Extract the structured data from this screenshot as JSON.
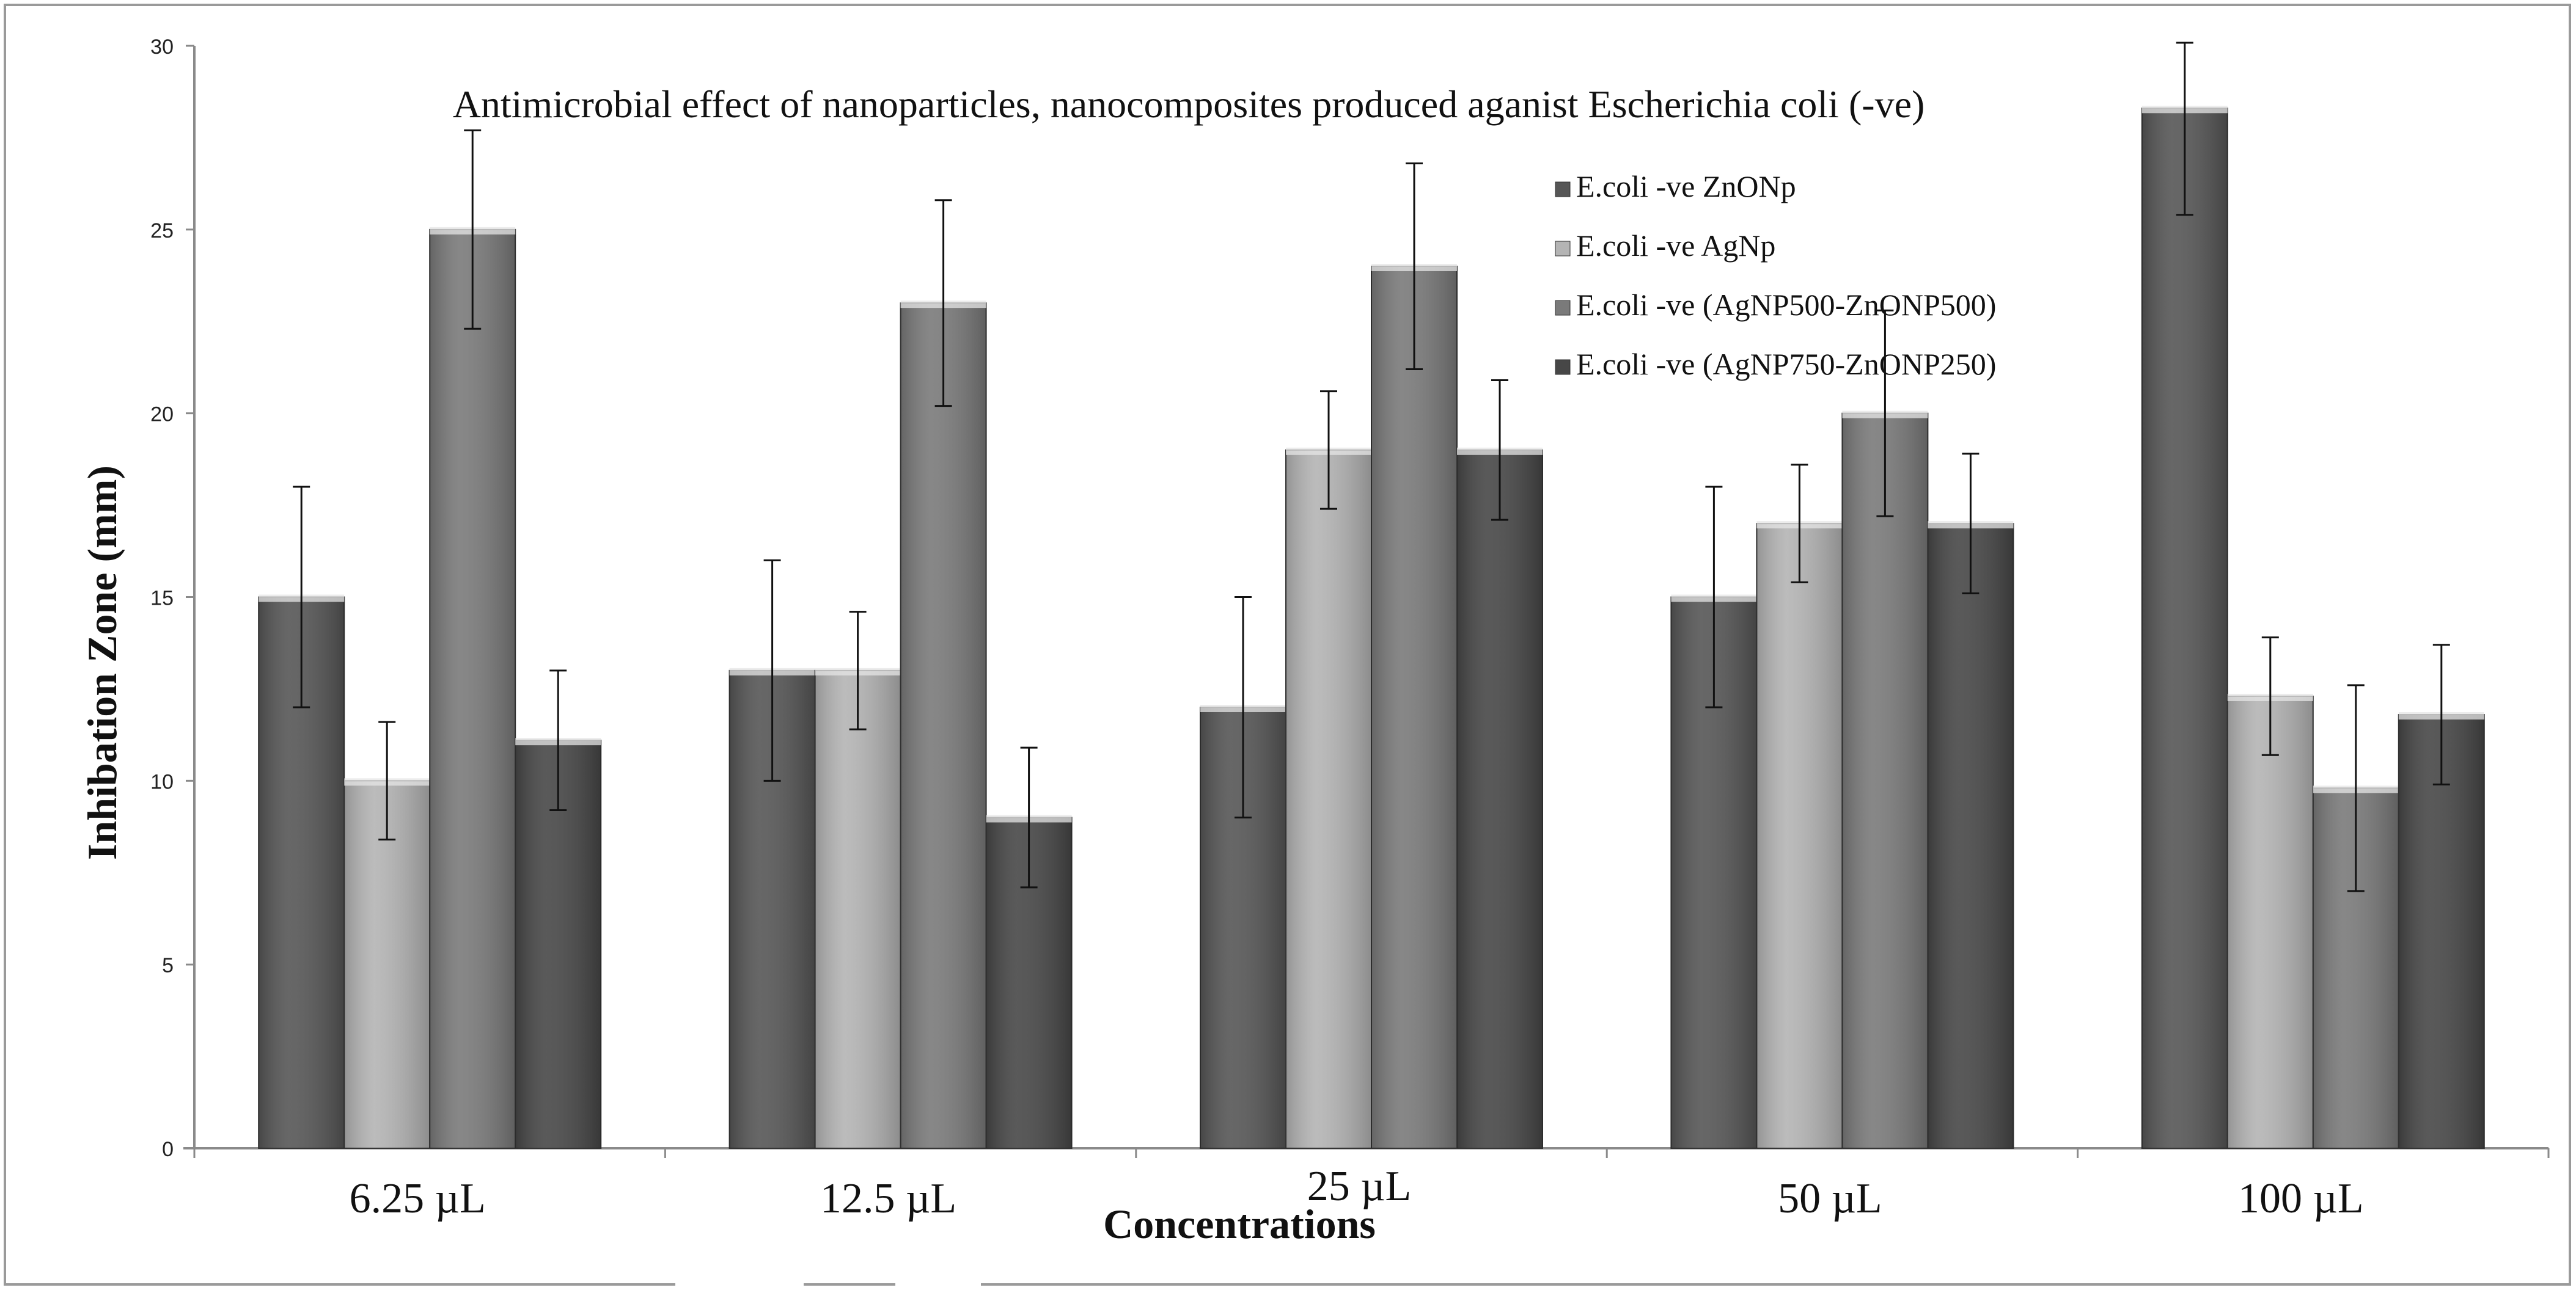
{
  "chart_data": {
    "type": "bar",
    "title": "Antimicrobial effect of nanoparticles, nanocomposites produced aganist Escherichia coli  (-ve)",
    "xlabel": "Concentrations",
    "ylabel": "Inhibation Zone (mm)",
    "ylim": [
      0,
      30
    ],
    "yticks": [
      "0",
      "5",
      "10",
      "15",
      "20",
      "25",
      "30"
    ],
    "categories": [
      "6.25 µL",
      "12.5 µL",
      "25 µL",
      "50 µL",
      "100 µL"
    ],
    "legend_position": "top-right",
    "series": [
      {
        "name": "E.coli -ve ZnONp",
        "color": "#565656",
        "values": [
          15,
          13,
          12,
          15,
          28.3
        ],
        "errors": [
          3,
          3,
          3,
          3,
          2.9
        ]
      },
      {
        "name": "E.coli -ve AgNp",
        "color": "#b4b4b4",
        "values": [
          10,
          13,
          19,
          17,
          12.3
        ],
        "errors": [
          1.6,
          1.6,
          1.6,
          1.6,
          1.6
        ]
      },
      {
        "name": "E.coli -ve (AgNP500-ZnONP500)",
        "color": "#7a7a7a",
        "values": [
          25,
          23,
          24,
          20,
          9.8
        ],
        "errors": [
          2.7,
          2.8,
          2.8,
          2.8,
          2.8
        ]
      },
      {
        "name": "E.coli -ve (AgNP750-ZnONP250)",
        "color": "#474747",
        "values": [
          11.1,
          9,
          19,
          17,
          11.8
        ],
        "errors": [
          1.9,
          1.9,
          1.9,
          1.9,
          1.9
        ]
      }
    ]
  }
}
